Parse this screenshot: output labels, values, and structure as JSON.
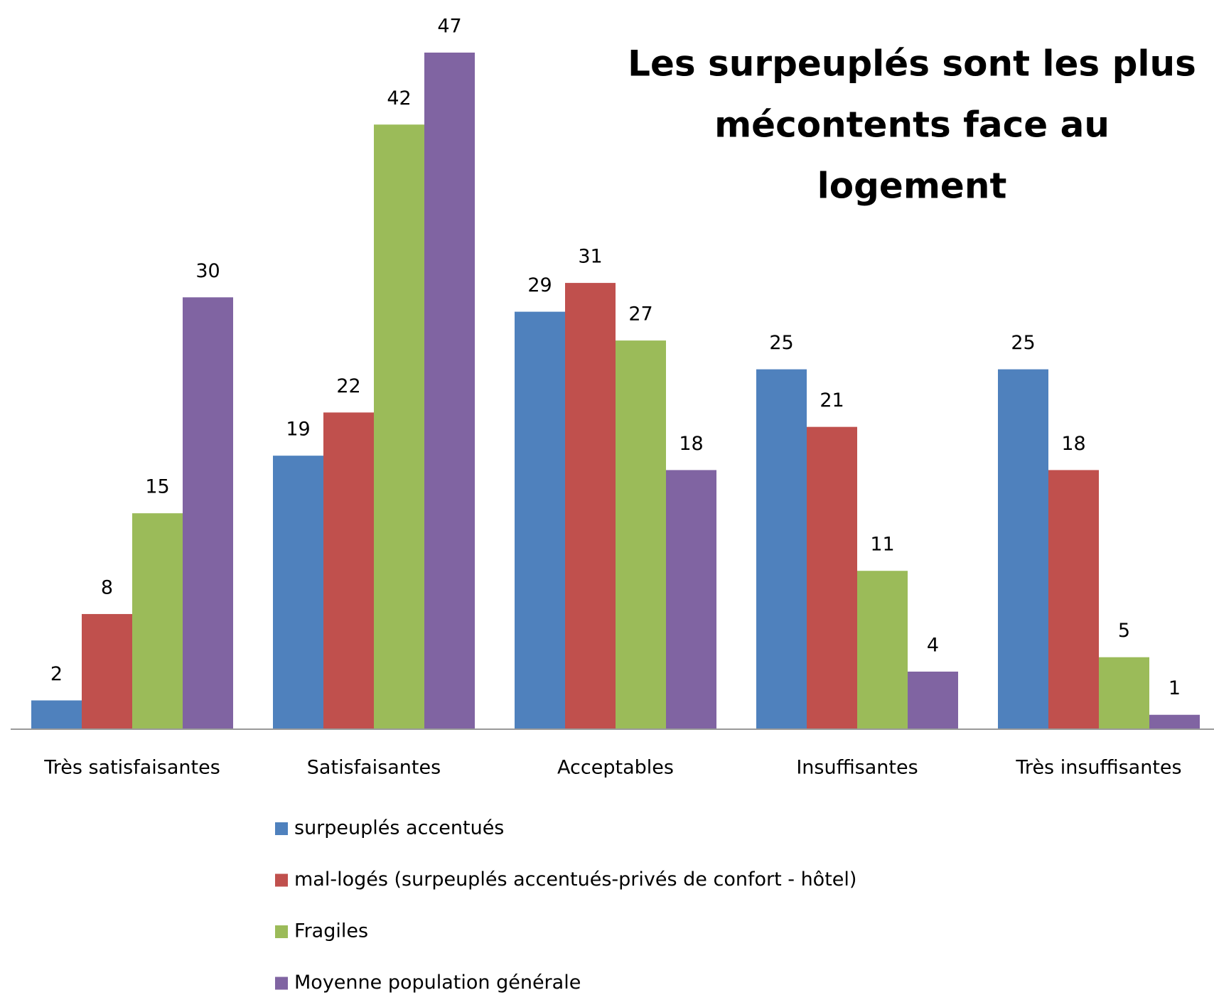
{
  "chart_data": {
    "type": "bar",
    "title": [
      "Les surpeuplés sont les plus",
      "mécontents face au",
      "logement"
    ],
    "categories": [
      "Très satisfaisantes",
      "Satisfaisantes",
      "Acceptables",
      "Insuffisantes",
      "Très insuffisantes"
    ],
    "series": [
      {
        "name": "surpeuplés accentués",
        "color": "#4f81bd",
        "values": [
          2,
          19,
          29,
          25,
          25
        ]
      },
      {
        "name": "mal-logés (surpeuplés accentués-privés de confort - hôtel)",
        "color": "#c0504d",
        "values": [
          8,
          22,
          31,
          21,
          18
        ]
      },
      {
        "name": "Fragiles",
        "color": "#9bbb59",
        "values": [
          15,
          42,
          27,
          11,
          5
        ]
      },
      {
        "name": "Moyenne population générale",
        "color": "#8064a2",
        "values": [
          30,
          47,
          18,
          4,
          1
        ]
      }
    ],
    "legend": "bottom"
  }
}
